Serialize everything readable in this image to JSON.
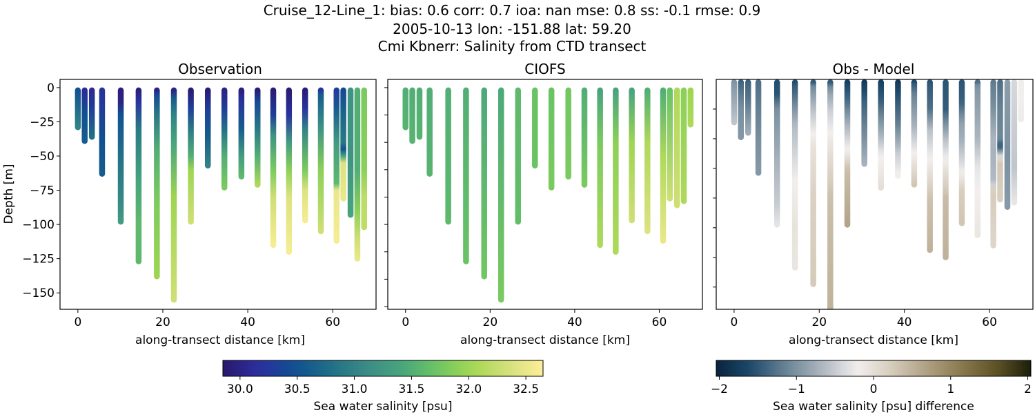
{
  "title_lines": [
    "Cruise_12-Line_1: bias: 0.6  corr: 0.7  ioa: nan  mse: 0.8  ss: -0.1  rmse: 0.9",
    "2005-10-13 lon: -151.88 lat: 59.20",
    "Cmi Kbnerr: Salinity from CTD transect"
  ],
  "chart_data": [
    {
      "type": "scatter",
      "title": "Observation",
      "xlabel": "along-transect distance [km]",
      "ylabel": "Depth [m]",
      "xlim": [
        -4.2,
        70.2
      ],
      "ylim": [
        -162,
        6
      ],
      "xticks": [
        0,
        20,
        40,
        60
      ],
      "xtick_labels": [
        "0",
        "20",
        "40",
        "60"
      ],
      "yticks": [
        0,
        -25,
        -50,
        -75,
        -100,
        -125,
        -150
      ],
      "ytick_labels": [
        "0",
        "−25",
        "−50",
        "−75",
        "−100",
        "−125",
        "−150"
      ],
      "colormap": "haline",
      "stations": [
        {
          "x": 0.0,
          "profile": [
            [
              0,
              30.5
            ],
            [
              29,
              31.0
            ]
          ]
        },
        {
          "x": 1.6,
          "profile": [
            [
              0,
              30.1
            ],
            [
              20,
              30.5
            ],
            [
              39,
              30.6
            ]
          ]
        },
        {
          "x": 3.3,
          "profile": [
            [
              0,
              30.1
            ],
            [
              15,
              30.3
            ],
            [
              36,
              30.8
            ]
          ]
        },
        {
          "x": 5.7,
          "profile": [
            [
              0,
              30.2
            ],
            [
              40,
              30.5
            ],
            [
              63,
              30.6
            ]
          ]
        },
        {
          "x": 10.1,
          "profile": [
            [
              0,
              29.95
            ],
            [
              10,
              30.0
            ],
            [
              20,
              30.5
            ],
            [
              60,
              30.9
            ],
            [
              85,
              31.1
            ],
            [
              98,
              31.3
            ]
          ]
        },
        {
          "x": 14.3,
          "profile": [
            [
              0,
              29.95
            ],
            [
              10,
              30.2
            ],
            [
              30,
              30.9
            ],
            [
              70,
              31.4
            ],
            [
              100,
              31.6
            ],
            [
              127,
              31.6
            ]
          ]
        },
        {
          "x": 18.6,
          "profile": [
            [
              0,
              30.0
            ],
            [
              5,
              30.4
            ],
            [
              20,
              30.9
            ],
            [
              45,
              31.5
            ],
            [
              80,
              31.8
            ],
            [
              138,
              32.0
            ]
          ]
        },
        {
          "x": 22.6,
          "profile": [
            [
              0,
              30.0
            ],
            [
              8,
              30.6
            ],
            [
              20,
              31.0
            ],
            [
              40,
              31.4
            ],
            [
              80,
              32.0
            ],
            [
              155,
              32.3
            ]
          ]
        },
        {
          "x": 26.6,
          "profile": [
            [
              0,
              29.9
            ],
            [
              15,
              30.3
            ],
            [
              30,
              30.9
            ],
            [
              50,
              31.5
            ],
            [
              60,
              32.0
            ],
            [
              98,
              32.3
            ]
          ]
        },
        {
          "x": 30.6,
          "profile": [
            [
              0,
              29.9
            ],
            [
              15,
              30.3
            ],
            [
              35,
              30.6
            ],
            [
              57,
              31.0
            ]
          ]
        },
        {
          "x": 34.5,
          "profile": [
            [
              0,
              30.0
            ],
            [
              15,
              30.3
            ],
            [
              30,
              30.8
            ],
            [
              50,
              31.5
            ],
            [
              73,
              31.8
            ]
          ]
        },
        {
          "x": 38.5,
          "profile": [
            [
              0,
              29.95
            ],
            [
              10,
              30.2
            ],
            [
              30,
              30.6
            ],
            [
              50,
              31.3
            ],
            [
              65,
              31.6
            ]
          ]
        },
        {
          "x": 42.3,
          "profile": [
            [
              0,
              29.9
            ],
            [
              10,
              30.4
            ],
            [
              30,
              30.9
            ],
            [
              50,
              31.5
            ],
            [
              71,
              32.1
            ]
          ]
        },
        {
          "x": 46.0,
          "profile": [
            [
              0,
              29.9
            ],
            [
              20,
              30.3
            ],
            [
              35,
              31.2
            ],
            [
              60,
              31.8
            ],
            [
              80,
              32.3
            ],
            [
              115,
              32.6
            ]
          ]
        },
        {
          "x": 49.7,
          "profile": [
            [
              0,
              29.9
            ],
            [
              20,
              30.2
            ],
            [
              40,
              31.3
            ],
            [
              60,
              31.9
            ],
            [
              80,
              32.4
            ],
            [
              120,
              32.6
            ]
          ]
        },
        {
          "x": 53.5,
          "profile": [
            [
              0,
              29.9
            ],
            [
              15,
              30.2
            ],
            [
              30,
              31.0
            ],
            [
              60,
              31.8
            ],
            [
              75,
              32.4
            ],
            [
              97,
              32.6
            ]
          ]
        },
        {
          "x": 57.2,
          "profile": [
            [
              0,
              30.2
            ],
            [
              5,
              30.6
            ],
            [
              30,
              31.2
            ],
            [
              60,
              31.9
            ],
            [
              105,
              32.3
            ]
          ]
        },
        {
          "x": 60.9,
          "profile": [
            [
              0,
              30.3
            ],
            [
              15,
              30.6
            ],
            [
              40,
              31.3
            ],
            [
              70,
              31.6
            ],
            [
              75,
              32.5
            ],
            [
              112,
              32.6
            ]
          ]
        },
        {
          "x": 62.5,
          "profile": [
            [
              0,
              30.4
            ],
            [
              20,
              30.7
            ],
            [
              40,
              30.9
            ],
            [
              45,
              30.5
            ],
            [
              50,
              31.4
            ],
            [
              55,
              32.4
            ],
            [
              81,
              32.5
            ]
          ]
        },
        {
          "x": 64.2,
          "profile": [
            [
              0,
              31.2
            ],
            [
              50,
              31.2
            ],
            [
              93,
              31.4
            ]
          ]
        },
        {
          "x": 65.8,
          "profile": [
            [
              0,
              31.5
            ],
            [
              60,
              31.5
            ],
            [
              90,
              31.9
            ],
            [
              110,
              32.3
            ],
            [
              125,
              32.5
            ]
          ]
        },
        {
          "x": 67.4,
          "profile": [
            [
              0,
              31.8
            ],
            [
              60,
              31.9
            ],
            [
              80,
              32.2
            ],
            [
              102,
              32.2
            ]
          ]
        }
      ]
    },
    {
      "type": "scatter",
      "title": "CIOFS",
      "xlabel": "along-transect distance [km]",
      "xlim": [
        -4.2,
        70.2
      ],
      "ylim": [
        -162,
        6
      ],
      "xticks": [
        0,
        20,
        40,
        60
      ],
      "xtick_labels": [
        "0",
        "20",
        "40",
        "60"
      ],
      "yticks": [
        0,
        -20,
        -40,
        -60,
        -80,
        -100,
        -120,
        -140,
        -160
      ],
      "colormap": "haline",
      "stations": [
        {
          "x": 0.0,
          "profile": [
            [
              0,
              31.5
            ],
            [
              29,
              31.55
            ]
          ]
        },
        {
          "x": 1.6,
          "profile": [
            [
              0,
              31.5
            ],
            [
              39,
              31.55
            ]
          ]
        },
        {
          "x": 3.3,
          "profile": [
            [
              0,
              31.5
            ],
            [
              36,
              31.55
            ]
          ]
        },
        {
          "x": 5.7,
          "profile": [
            [
              0,
              31.5
            ],
            [
              63,
              31.55
            ]
          ]
        },
        {
          "x": 10.1,
          "profile": [
            [
              0,
              31.5
            ],
            [
              98,
              31.6
            ]
          ]
        },
        {
          "x": 14.3,
          "profile": [
            [
              0,
              31.5
            ],
            [
              127,
              31.7
            ]
          ]
        },
        {
          "x": 18.6,
          "profile": [
            [
              0,
              31.45
            ],
            [
              138,
              31.75
            ]
          ]
        },
        {
          "x": 22.6,
          "profile": [
            [
              0,
              31.45
            ],
            [
              155,
              31.8
            ]
          ]
        },
        {
          "x": 26.6,
          "profile": [
            [
              0,
              31.6
            ],
            [
              98,
              31.65
            ]
          ]
        },
        {
          "x": 30.6,
          "profile": [
            [
              0,
              31.7
            ],
            [
              57,
              31.7
            ]
          ]
        },
        {
          "x": 34.5,
          "profile": [
            [
              0,
              31.7
            ],
            [
              73,
              31.8
            ]
          ]
        },
        {
          "x": 38.5,
          "profile": [
            [
              0,
              31.75
            ],
            [
              65,
              31.8
            ]
          ]
        },
        {
          "x": 42.3,
          "profile": [
            [
              0,
              31.5
            ],
            [
              71,
              31.8
            ]
          ]
        },
        {
          "x": 46.0,
          "profile": [
            [
              0,
              31.4
            ],
            [
              40,
              31.8
            ],
            [
              115,
              32.1
            ]
          ]
        },
        {
          "x": 49.7,
          "profile": [
            [
              0,
              31.4
            ],
            [
              40,
              31.9
            ],
            [
              120,
              32.1
            ]
          ]
        },
        {
          "x": 53.5,
          "profile": [
            [
              0,
              31.4
            ],
            [
              40,
              32.0
            ],
            [
              97,
              32.3
            ]
          ]
        },
        {
          "x": 57.2,
          "profile": [
            [
              0,
              31.5
            ],
            [
              40,
              32.1
            ],
            [
              105,
              32.4
            ]
          ]
        },
        {
          "x": 60.9,
          "profile": [
            [
              0,
              31.5
            ],
            [
              50,
              32.1
            ],
            [
              112,
              32.5
            ]
          ]
        },
        {
          "x": 62.5,
          "profile": [
            [
              0,
              31.7
            ],
            [
              81,
              32.3
            ]
          ]
        },
        {
          "x": 64.2,
          "profile": [
            [
              0,
              32.1
            ],
            [
              86,
              32.3
            ]
          ]
        },
        {
          "x": 65.8,
          "profile": [
            [
              0,
              31.9
            ],
            [
              83,
              32.1
            ]
          ]
        },
        {
          "x": 67.4,
          "profile": [
            [
              0,
              32.0
            ],
            [
              27,
              32.1
            ]
          ]
        }
      ]
    },
    {
      "type": "scatter",
      "title": "Obs - Model",
      "xlabel": "along-transect distance [km]",
      "xlim": [
        -4.2,
        70.2
      ],
      "ylim": [
        -155,
        0
      ],
      "xticks": [
        0,
        20,
        40,
        60
      ],
      "xtick_labels": [
        "0",
        "20",
        "40",
        "60"
      ],
      "yticks": [
        -20,
        -40,
        -60,
        -80,
        -100,
        -120,
        -140
      ],
      "colormap": "diff",
      "values": "Observation minus CIOFS"
    }
  ],
  "colorbars": [
    {
      "label": "Sea water salinity [psu]",
      "range": [
        29.85,
        32.65
      ],
      "ticks": [
        30.0,
        30.5,
        31.0,
        31.5,
        32.0,
        32.5
      ],
      "tick_labels": [
        "30.0",
        "30.5",
        "31.0",
        "31.5",
        "32.0",
        "32.5"
      ]
    },
    {
      "label": "Sea water salinity [psu] difference",
      "range": [
        -2.04,
        2.04
      ],
      "ticks": [
        -2,
        -1,
        0,
        1,
        2
      ],
      "tick_labels": [
        "−2",
        "−1",
        "0",
        "1",
        "2"
      ]
    }
  ],
  "colors": {
    "haline": [
      "#2a186c",
      "#2c2fa0",
      "#0f4f92",
      "#1f6f87",
      "#3a8a86",
      "#47a47d",
      "#6bc564",
      "#a3d751",
      "#d4e07a",
      "#fdee99"
    ],
    "diff": [
      "#08233e",
      "#1d4a6c",
      "#6a8496",
      "#aab4be",
      "#f2efee",
      "#d7cdbd",
      "#b0a184",
      "#8a7a4f",
      "#5f5425",
      "#1c1e0b"
    ]
  }
}
